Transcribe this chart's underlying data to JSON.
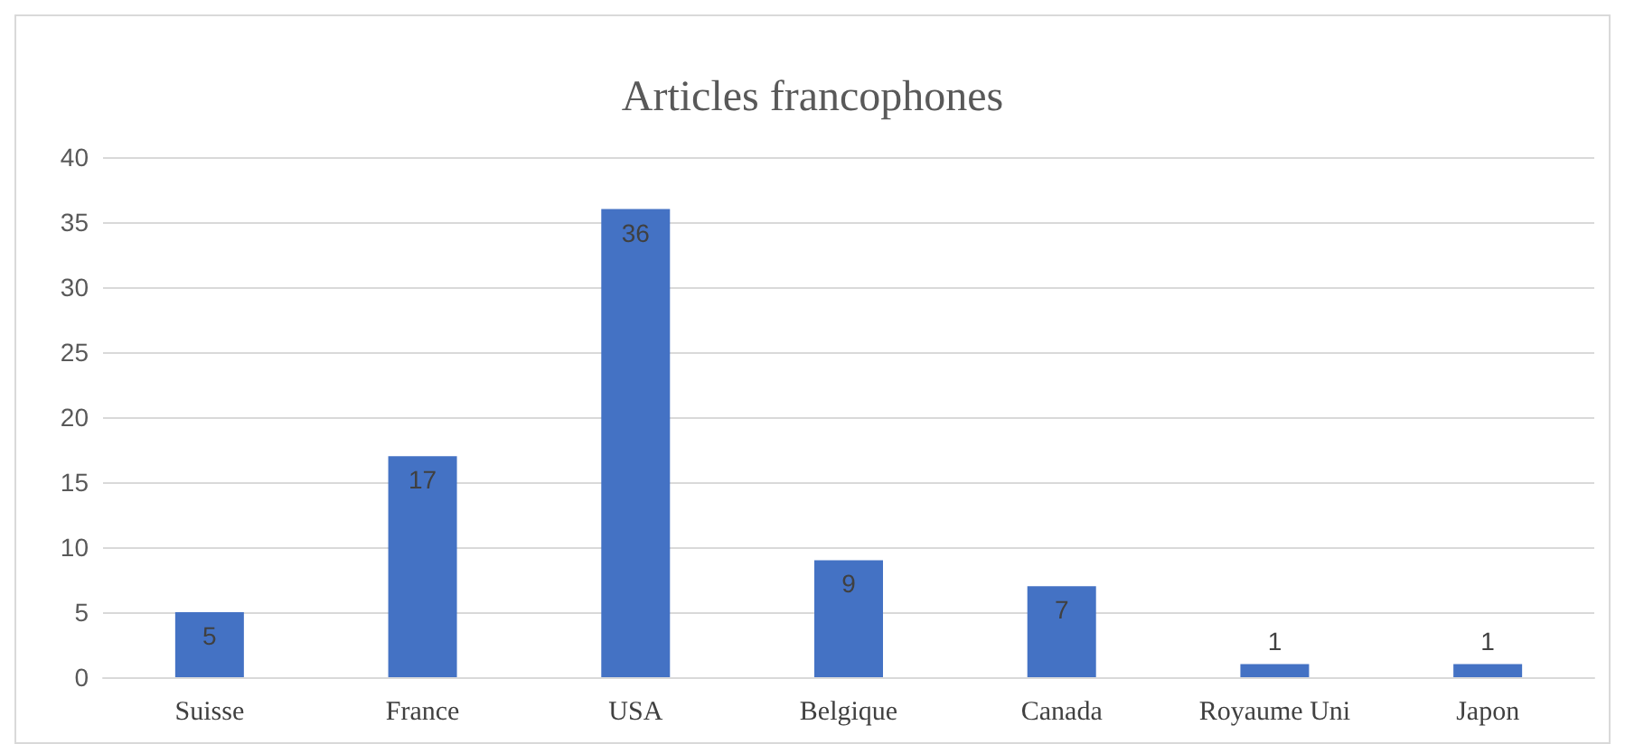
{
  "chart_data": {
    "type": "bar",
    "title": "Articles francophones",
    "categories": [
      "Suisse",
      "France",
      "USA",
      "Belgique",
      "Canada",
      "Royaume Uni",
      "Japon"
    ],
    "values": [
      5,
      17,
      36,
      9,
      7,
      1,
      1
    ],
    "color": "#4472c4",
    "ylim": [
      0,
      40
    ],
    "yticks": [
      0,
      5,
      10,
      15,
      20,
      25,
      30,
      35,
      40
    ],
    "grid": "y",
    "data_labels": true
  }
}
